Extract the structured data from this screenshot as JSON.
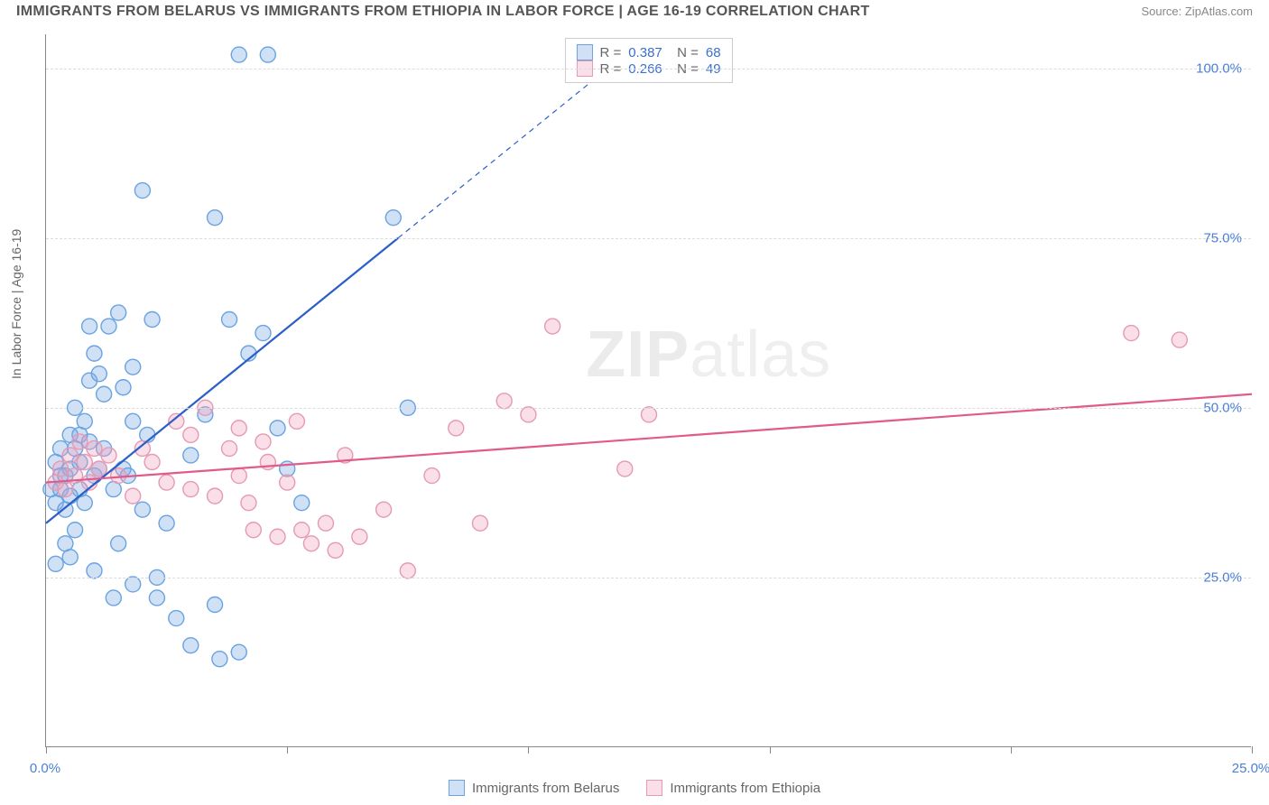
{
  "title": "IMMIGRANTS FROM BELARUS VS IMMIGRANTS FROM ETHIOPIA IN LABOR FORCE | AGE 16-19 CORRELATION CHART",
  "source": "Source: ZipAtlas.com",
  "ylabel": "In Labor Force | Age 16-19",
  "watermark_a": "ZIP",
  "watermark_b": "atlas",
  "chart": {
    "type": "scatter",
    "background_color": "#ffffff",
    "grid_color": "#dcdcdc",
    "axis_color": "#888888",
    "xlim": [
      0,
      25
    ],
    "ylim": [
      0,
      105
    ],
    "yticks": [
      25,
      50,
      75,
      100
    ],
    "ytick_labels": [
      "25.0%",
      "50.0%",
      "75.0%",
      "100.0%"
    ],
    "xticks": [
      0,
      5,
      10,
      15,
      20,
      25
    ],
    "xtick_labels": [
      "0.0%",
      "",
      "",
      "",
      "",
      "25.0%"
    ],
    "ytick_color": "#4a7fd6",
    "xtick_color": "#4a7fd6",
    "tick_fontsize": 15,
    "label_fontsize": 14,
    "label_color": "#666666",
    "marker_radius": 8.5,
    "marker_stroke_width": 1.4,
    "line_width": 2.2,
    "series": [
      {
        "name": "Immigrants from Belarus",
        "color_fill": "rgba(120,170,230,0.35)",
        "color_stroke": "#6aa3e0",
        "line_color": "#2a5fc8",
        "R": "0.387",
        "N": "68",
        "regression": {
          "x1": 0.0,
          "y1": 33,
          "x2": 7.3,
          "y2": 75
        },
        "regression_ext": {
          "x1": 7.3,
          "y1": 75,
          "x2": 12.0,
          "y2": 102
        },
        "points": [
          [
            0.1,
            38
          ],
          [
            0.2,
            42
          ],
          [
            0.2,
            36
          ],
          [
            0.3,
            40
          ],
          [
            0.3,
            44
          ],
          [
            0.4,
            35
          ],
          [
            0.4,
            30
          ],
          [
            0.5,
            46
          ],
          [
            0.5,
            41
          ],
          [
            0.5,
            28
          ],
          [
            0.6,
            50
          ],
          [
            0.6,
            44
          ],
          [
            0.7,
            38
          ],
          [
            0.7,
            42
          ],
          [
            0.8,
            48
          ],
          [
            0.8,
            36
          ],
          [
            0.9,
            54
          ],
          [
            0.9,
            45
          ],
          [
            1.0,
            40
          ],
          [
            1.0,
            58
          ],
          [
            1.1,
            55
          ],
          [
            1.2,
            52
          ],
          [
            1.2,
            44
          ],
          [
            1.3,
            62
          ],
          [
            1.4,
            38
          ],
          [
            1.5,
            64
          ],
          [
            1.5,
            30
          ],
          [
            1.6,
            41
          ],
          [
            1.8,
            56
          ],
          [
            1.8,
            48
          ],
          [
            2.0,
            82
          ],
          [
            2.0,
            35
          ],
          [
            2.2,
            63
          ],
          [
            2.3,
            25
          ],
          [
            2.3,
            22
          ],
          [
            2.5,
            33
          ],
          [
            2.7,
            19
          ],
          [
            3.0,
            15
          ],
          [
            3.0,
            43
          ],
          [
            3.3,
            49
          ],
          [
            3.5,
            78
          ],
          [
            3.5,
            21
          ],
          [
            3.6,
            13
          ],
          [
            3.8,
            63
          ],
          [
            4.0,
            14
          ],
          [
            4.0,
            102
          ],
          [
            4.2,
            58
          ],
          [
            4.5,
            61
          ],
          [
            4.6,
            102
          ],
          [
            4.8,
            47
          ],
          [
            5.0,
            41
          ],
          [
            5.3,
            36
          ],
          [
            7.2,
            78
          ],
          [
            7.5,
            50
          ],
          [
            0.2,
            27
          ],
          [
            0.6,
            32
          ],
          [
            1.0,
            26
          ],
          [
            1.4,
            22
          ],
          [
            1.8,
            24
          ],
          [
            0.9,
            62
          ],
          [
            1.1,
            41
          ],
          [
            1.6,
            53
          ],
          [
            0.4,
            40
          ],
          [
            0.3,
            38
          ],
          [
            0.7,
            46
          ],
          [
            0.5,
            37
          ],
          [
            2.1,
            46
          ],
          [
            1.7,
            40
          ]
        ]
      },
      {
        "name": "Immigrants from Ethiopia",
        "color_fill": "rgba(240,160,190,0.35)",
        "color_stroke": "#e59ab4",
        "line_color": "#e05a8a",
        "R": "0.266",
        "N": "49",
        "regression": {
          "x1": 0.0,
          "y1": 39,
          "x2": 25.0,
          "y2": 52
        },
        "points": [
          [
            0.2,
            39
          ],
          [
            0.3,
            41
          ],
          [
            0.4,
            38
          ],
          [
            0.5,
            43
          ],
          [
            0.6,
            40
          ],
          [
            0.7,
            45
          ],
          [
            0.8,
            42
          ],
          [
            0.9,
            39
          ],
          [
            1.0,
            44
          ],
          [
            1.1,
            41
          ],
          [
            1.3,
            43
          ],
          [
            1.5,
            40
          ],
          [
            1.8,
            37
          ],
          [
            2.0,
            44
          ],
          [
            2.2,
            42
          ],
          [
            2.5,
            39
          ],
          [
            2.7,
            48
          ],
          [
            3.0,
            38
          ],
          [
            3.0,
            46
          ],
          [
            3.3,
            50
          ],
          [
            3.5,
            37
          ],
          [
            3.8,
            44
          ],
          [
            4.0,
            40
          ],
          [
            4.0,
            47
          ],
          [
            4.2,
            36
          ],
          [
            4.3,
            32
          ],
          [
            4.5,
            45
          ],
          [
            4.6,
            42
          ],
          [
            4.8,
            31
          ],
          [
            5.0,
            39
          ],
          [
            5.2,
            48
          ],
          [
            5.3,
            32
          ],
          [
            5.5,
            30
          ],
          [
            5.8,
            33
          ],
          [
            6.0,
            29
          ],
          [
            6.2,
            43
          ],
          [
            6.5,
            31
          ],
          [
            7.0,
            35
          ],
          [
            7.5,
            26
          ],
          [
            8.0,
            40
          ],
          [
            8.5,
            47
          ],
          [
            9.0,
            33
          ],
          [
            9.5,
            51
          ],
          [
            10.0,
            49
          ],
          [
            10.5,
            62
          ],
          [
            12.0,
            41
          ],
          [
            12.5,
            49
          ],
          [
            22.5,
            61
          ],
          [
            23.5,
            60
          ]
        ]
      }
    ]
  },
  "legend_top": {
    "border_color": "#cccccc",
    "text_color": "#666666",
    "value_color": "#3a6fd0",
    "fontsize": 15
  },
  "legend_bottom": {
    "text_color": "#666666",
    "fontsize": 15
  }
}
